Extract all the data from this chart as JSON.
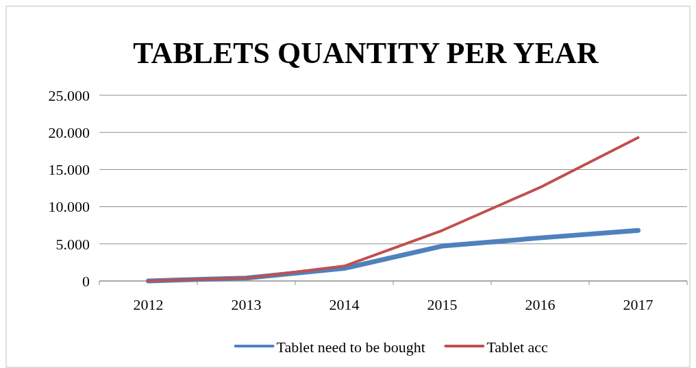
{
  "chart_data": {
    "type": "line",
    "title": "TABLETS QUANTITY PER YEAR",
    "categories": [
      "2012",
      "2013",
      "2014",
      "2015",
      "2016",
      "2017"
    ],
    "series": [
      {
        "name": "Tablet need to be bought",
        "color": "#4f81bd",
        "values": [
          0,
          400,
          1700,
          4700,
          5800,
          6800
        ]
      },
      {
        "name": "Tablet acc",
        "color": "#c0504d",
        "values": [
          0,
          400,
          2000,
          6800,
          12600,
          19300
        ]
      }
    ],
    "ylim": [
      0,
      25000
    ],
    "yticks": [
      {
        "value": 0,
        "label": "0"
      },
      {
        "value": 5000,
        "label": "5.000"
      },
      {
        "value": 10000,
        "label": "10.000"
      },
      {
        "value": 15000,
        "label": "15.000"
      },
      {
        "value": 20000,
        "label": "20.000"
      },
      {
        "value": 25000,
        "label": "25.000"
      }
    ],
    "grid": "y",
    "legend": "bottom",
    "marker": "none",
    "line_style": "solid"
  }
}
